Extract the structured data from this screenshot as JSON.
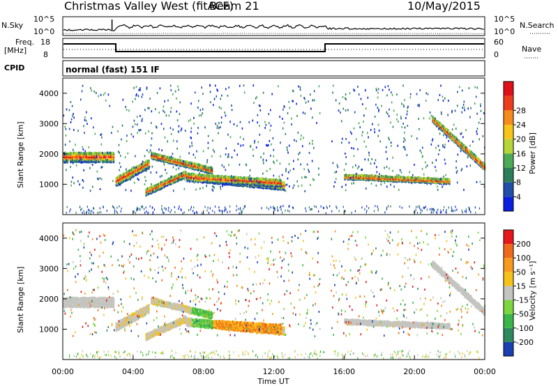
{
  "header": {
    "station": "Christmas Valley West (fitACF)",
    "beam": "Beam 21",
    "date": "10/May/2015"
  },
  "noise_panel": {
    "left_label": "N.Sky",
    "left_ticks": [
      "10^5",
      "10^0"
    ],
    "right_ticks": [
      "10^5",
      "10^0"
    ],
    "right_label": "N.Search"
  },
  "freq_panel": {
    "left_label_1": "Freq.",
    "left_label_2": "[MHz]",
    "left_ticks": [
      "18",
      "8"
    ],
    "right_ticks": [
      "60",
      "0"
    ],
    "right_label": "Nave"
  },
  "cpid": {
    "label": "CPID",
    "value": "normal (fast) 151 IF"
  },
  "chart_data": [
    {
      "type": "heatmap",
      "name": "power",
      "ylabel": "Slant Range [km]",
      "yticks": [
        "1000",
        "2000",
        "3000",
        "4000"
      ],
      "ylim": [
        0,
        4500
      ],
      "colorbar_label": "Power [dB]",
      "colorbar_ticks": [
        "4",
        "8",
        "12",
        "16",
        "20",
        "24",
        "28"
      ],
      "colorbar_colors": [
        "#0b1fe0",
        "#1f4fa8",
        "#2e7d5a",
        "#4daa55",
        "#b5d53a",
        "#f7c51a",
        "#f58a1f",
        "#ee3d1c",
        "#e0101a"
      ]
    },
    {
      "type": "heatmap",
      "name": "velocity",
      "ylabel": "Slant Range [km]",
      "yticks": [
        "1000",
        "2000",
        "3000",
        "4000"
      ],
      "ylim": [
        0,
        4500
      ],
      "colorbar_label": "Velocity [m s⁻¹]",
      "colorbar_ticks": [
        "200",
        "100",
        "50",
        "15",
        "-15",
        "-50",
        "-100",
        "-200"
      ],
      "colorbar_colors": [
        "#1a3fb0",
        "#2e8a5c",
        "#39b54a",
        "#7cd640",
        "#c4c4c0",
        "#f5c21a",
        "#f79a1d",
        "#f06a1c",
        "#e8161c"
      ]
    }
  ],
  "time_axis": {
    "ticks": [
      "00:00",
      "04:00",
      "08:00",
      "12:00",
      "16:00",
      "20:00",
      "00:00"
    ],
    "label": "Time UT"
  }
}
